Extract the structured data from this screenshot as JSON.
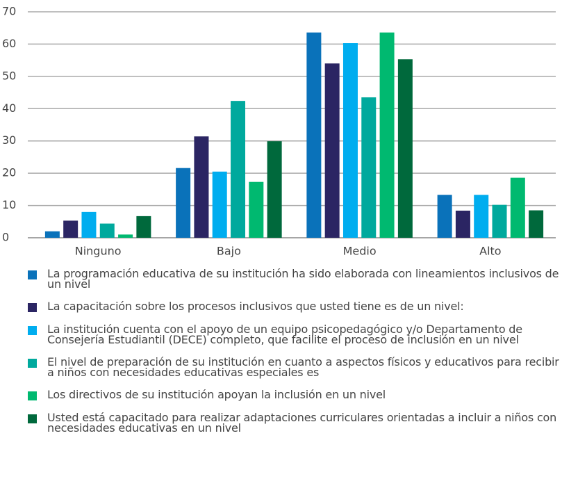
{
  "chart_data": {
    "type": "bar",
    "categories": [
      "Ninguno",
      "Bajo",
      "Medio",
      "Alto"
    ],
    "series": [
      {
        "name": "La programación educativa de su institución ha sido elaborada con lineamientos inclusivos de un nivel",
        "color": "#0a72ba",
        "values": [
          2,
          21.6,
          63.6,
          13.3
        ]
      },
      {
        "name": "La capacitación sobre los procesos inclusivos que usted tiene es de un nivel:",
        "color": "#2b2563",
        "values": [
          5.3,
          31.4,
          54,
          8.4
        ]
      },
      {
        "name": "La institución cuenta con el apoyo de un equipo psicopedagógico y/o Departamento de Consejería Estudiantil (DECE) completo, que facilite el proceso de inclusión en un nivel",
        "color": "#00adef",
        "values": [
          8,
          20.5,
          60.3,
          13.3
        ]
      },
      {
        "name": "El nivel de preparación de su institución en cuanto a aspectos físicos y educativos para recibir a niños con necesidades educativas especiales es",
        "color": "#00a99d",
        "values": [
          4.4,
          42.4,
          43.5,
          10.2
        ]
      },
      {
        "name": "Los directivos de su institución apoyan la inclusión en un nivel",
        "color": "#00b970",
        "values": [
          1,
          17.3,
          63.6,
          18.6
        ]
      },
      {
        "name": "Usted está capacitado para realizar adaptaciones curriculares orientadas a incluir a niños con necesidades educativas en un nivel",
        "color": "#00693c",
        "values": [
          6.7,
          29.9,
          55.3,
          8.5
        ]
      }
    ],
    "ylim": [
      0,
      70
    ],
    "yticks": [
      0,
      10,
      20,
      30,
      40,
      50,
      60,
      70
    ],
    "grid": true,
    "legend": "bottom"
  }
}
